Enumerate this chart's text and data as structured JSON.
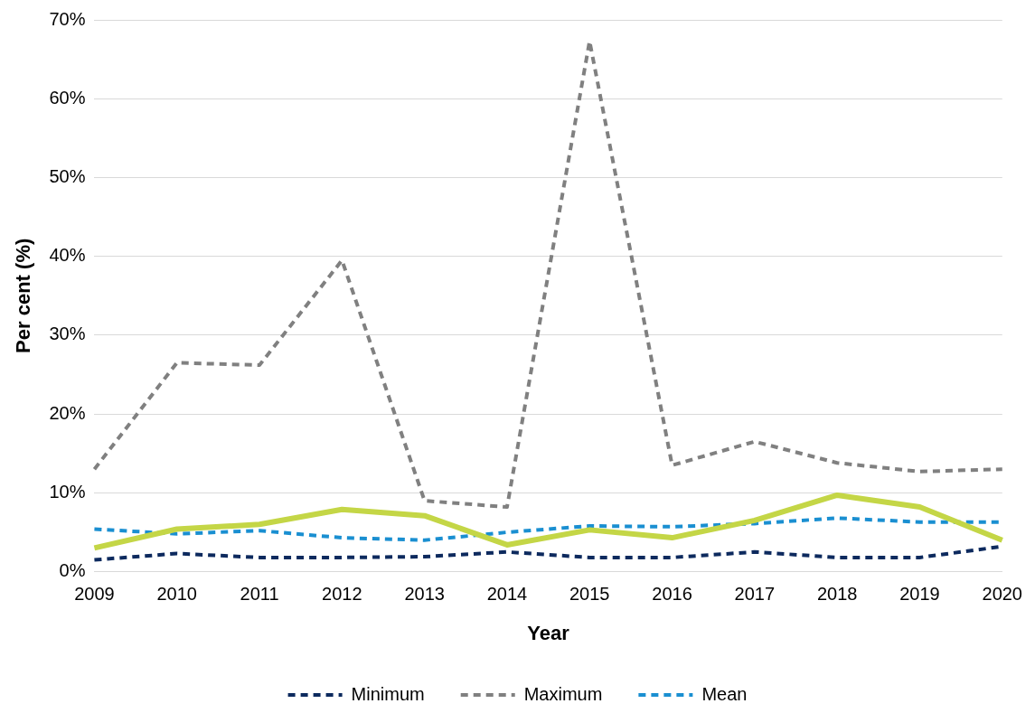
{
  "chart_data": {
    "type": "line",
    "xlabel": "Year",
    "ylabel": "Per cent (%)",
    "categories": [
      "2009",
      "2010",
      "2011",
      "2012",
      "2013",
      "2014",
      "2015",
      "2016",
      "2017",
      "2018",
      "2019",
      "2020"
    ],
    "series": [
      {
        "color": "#c4d646",
        "line_style": "solid",
        "values": [
          3.0,
          5.4,
          6.0,
          7.9,
          7.1,
          3.4,
          5.3,
          4.3,
          6.5,
          9.7,
          8.2,
          4.0
        ]
      },
      {
        "name": "Minimum",
        "color": "#0d2a5e",
        "line_style": "dashed",
        "values": [
          1.5,
          2.3,
          1.8,
          1.8,
          1.9,
          2.5,
          1.8,
          1.8,
          2.5,
          1.8,
          1.8,
          3.2
        ]
      },
      {
        "name": "Maximum",
        "color": "#808080",
        "line_style": "dashed",
        "values": [
          13.0,
          26.5,
          26.2,
          39.5,
          9.0,
          8.2,
          67.3,
          13.5,
          16.5,
          13.8,
          12.7,
          13.0
        ]
      },
      {
        "name": "Mean",
        "color": "#1a8fd1",
        "line_style": "dashed",
        "values": [
          5.4,
          4.8,
          5.2,
          4.3,
          4.0,
          5.0,
          5.8,
          5.7,
          6.1,
          6.8,
          6.3,
          6.3
        ]
      }
    ],
    "ylim": [
      0,
      70
    ],
    "yticks": [
      {
        "value": 0,
        "label": "0%"
      },
      {
        "value": 10,
        "label": "10%"
      },
      {
        "value": 20,
        "label": "20%"
      },
      {
        "value": 30,
        "label": "30%"
      },
      {
        "value": 40,
        "label": "40%"
      },
      {
        "value": 50,
        "label": "50%"
      },
      {
        "value": 60,
        "label": "60%"
      },
      {
        "value": 70,
        "label": "70%"
      }
    ],
    "grid": "y",
    "legend": "bottom",
    "marker": "none"
  }
}
